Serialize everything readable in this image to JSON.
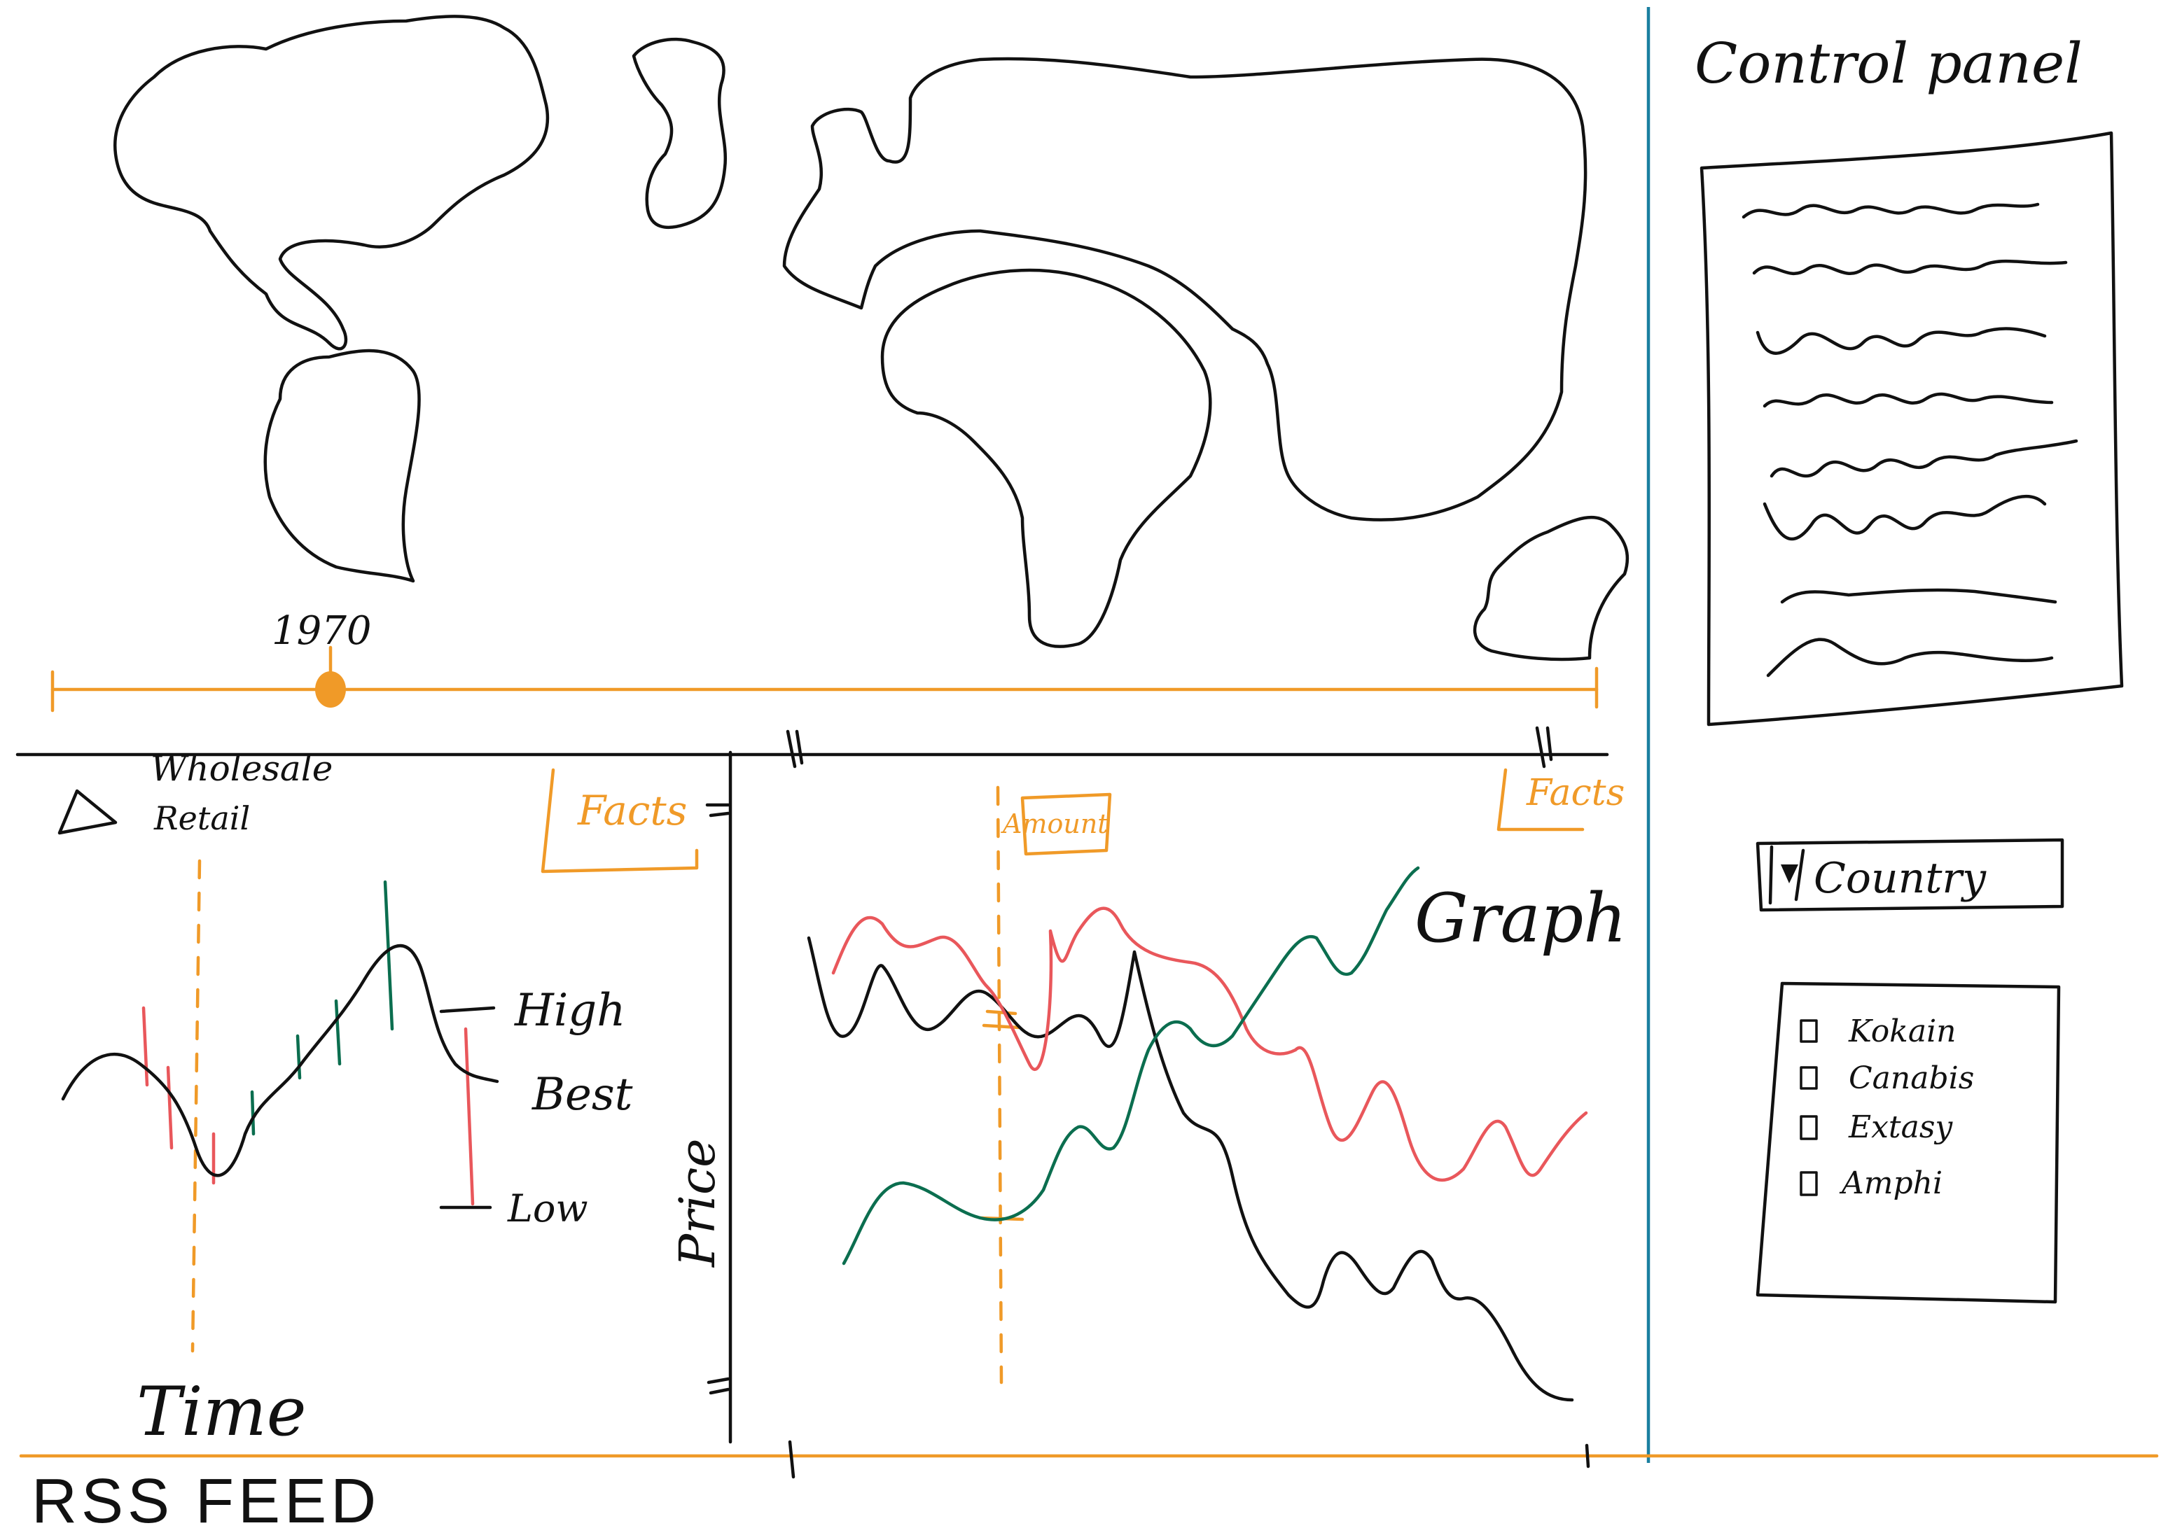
{
  "control_panel": {
    "title": "Control panel",
    "dropdown_label": "Country",
    "checkboxes": [
      "Kokain",
      "Canabis",
      "Extasy",
      "Amphi"
    ]
  },
  "map": {
    "slider_year": "1970"
  },
  "candlestick": {
    "legend_line1": "Wholesale",
    "legend_line2": "Retail",
    "facts_label": "Facts",
    "high_label": "High",
    "best_label": "Best",
    "low_label": "Low",
    "x_label": "Time"
  },
  "line_graph": {
    "facts_label": "Facts",
    "amount_label": "Amount",
    "graph_label": "Graph",
    "y_label": "Price"
  },
  "rss": {
    "title": "RSS FEED"
  },
  "colors": {
    "accent": "#f09a28",
    "divider": "#1a7fa0",
    "series_red": "#e9575b",
    "series_green": "#0b6e4f",
    "ink": "#111111"
  }
}
